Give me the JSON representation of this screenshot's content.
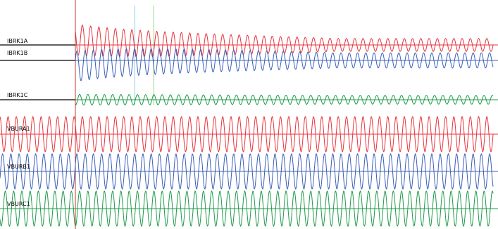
{
  "colors": {
    "phase_a": "#e8323c",
    "phase_b": "#3a5fb8",
    "phase_c": "#1f9a4a",
    "baseline": "#000000",
    "trigger_cursor": "#c0392b",
    "cursor_1": "#8fcfe0",
    "cursor_2": "#9ad28a"
  },
  "chart_data": {
    "type": "line",
    "title": "",
    "xlabel": "",
    "ylabel": "",
    "grid": false,
    "legend": "none",
    "cycles_shown": 59,
    "fault_inception_cycle": 8.4,
    "cursors": [
      {
        "id": "cursor-1",
        "cycle": 15.6
      },
      {
        "id": "cursor-2",
        "cycle": 17.9
      }
    ],
    "series": [
      {
        "name": "IBRK1A",
        "kind": "current",
        "phase": "a",
        "pre_fault_amplitude": 0.0,
        "post_fault_amplitude": 1.0,
        "post_fault_end_amplitude": 0.42,
        "dc_offset": 0.35
      },
      {
        "name": "IBRK1B",
        "kind": "current",
        "phase": "b",
        "pre_fault_amplitude": 0.0,
        "post_fault_amplitude": 0.9,
        "post_fault_end_amplitude": 0.45,
        "dc_offset": -0.35
      },
      {
        "name": "IBRK1C",
        "kind": "current",
        "phase": "c",
        "pre_fault_amplitude": 0.0,
        "post_fault_amplitude": 0.55,
        "post_fault_end_amplitude": 0.45,
        "dc_offset": 0.0
      },
      {
        "name": "VBURA1",
        "kind": "voltage",
        "phase": "a",
        "pre_fault_amplitude": 1.0,
        "post_fault_amplitude": 1.0,
        "post_fault_end_amplitude": 1.0,
        "dc_offset": 0.0
      },
      {
        "name": "VBURB1",
        "kind": "voltage",
        "phase": "b",
        "pre_fault_amplitude": 1.0,
        "post_fault_amplitude": 1.0,
        "post_fault_end_amplitude": 1.0,
        "dc_offset": 0.0
      },
      {
        "name": "VBURC1",
        "kind": "voltage",
        "phase": "c",
        "pre_fault_amplitude": 1.0,
        "post_fault_amplitude": 1.0,
        "post_fault_end_amplitude": 1.0,
        "dc_offset": 0.0
      }
    ]
  }
}
